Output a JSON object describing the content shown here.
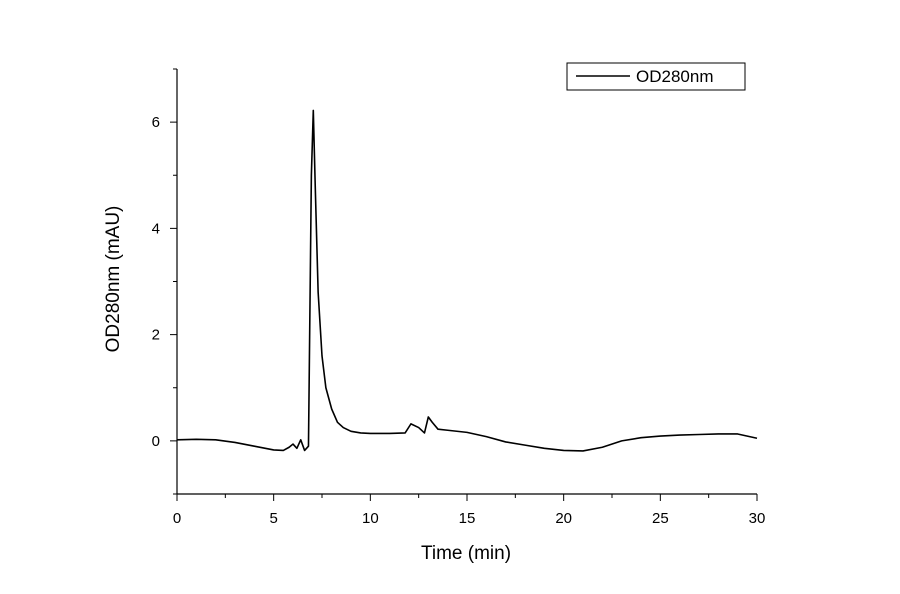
{
  "chart_data": {
    "type": "line",
    "xlabel": "Time (min)",
    "ylabel": "OD280nm (mAU)",
    "xlim": [
      0,
      30
    ],
    "ylim": [
      -1,
      7
    ],
    "xticks": [
      0,
      5,
      10,
      15,
      20,
      25,
      30
    ],
    "yticks": [
      0,
      2,
      4,
      6
    ],
    "grid": false,
    "legend_position": "top-right",
    "series": [
      {
        "name": "OD280nm",
        "color": "#000000",
        "x": [
          0,
          1,
          2,
          3,
          4,
          5,
          5.5,
          5.8,
          6.0,
          6.2,
          6.4,
          6.6,
          6.8,
          6.95,
          7.05,
          7.15,
          7.3,
          7.5,
          7.7,
          8.0,
          8.3,
          8.6,
          9.0,
          9.5,
          10,
          11,
          11.8,
          12.1,
          12.5,
          12.8,
          13.0,
          13.2,
          13.5,
          14,
          15,
          16,
          17,
          18,
          19,
          20,
          21,
          22,
          23,
          24,
          25,
          26,
          27,
          28,
          29,
          30
        ],
        "y": [
          0.02,
          0.03,
          0.02,
          -0.03,
          -0.1,
          -0.17,
          -0.18,
          -0.12,
          -0.06,
          -0.14,
          0.02,
          -0.18,
          -0.1,
          5.0,
          6.22,
          4.8,
          2.8,
          1.6,
          1.0,
          0.6,
          0.35,
          0.25,
          0.18,
          0.15,
          0.14,
          0.14,
          0.15,
          0.32,
          0.25,
          0.15,
          0.45,
          0.35,
          0.22,
          0.2,
          0.16,
          0.08,
          -0.02,
          -0.08,
          -0.14,
          -0.18,
          -0.19,
          -0.12,
          0.0,
          0.06,
          0.09,
          0.11,
          0.12,
          0.13,
          0.13,
          0.05
        ]
      }
    ]
  }
}
